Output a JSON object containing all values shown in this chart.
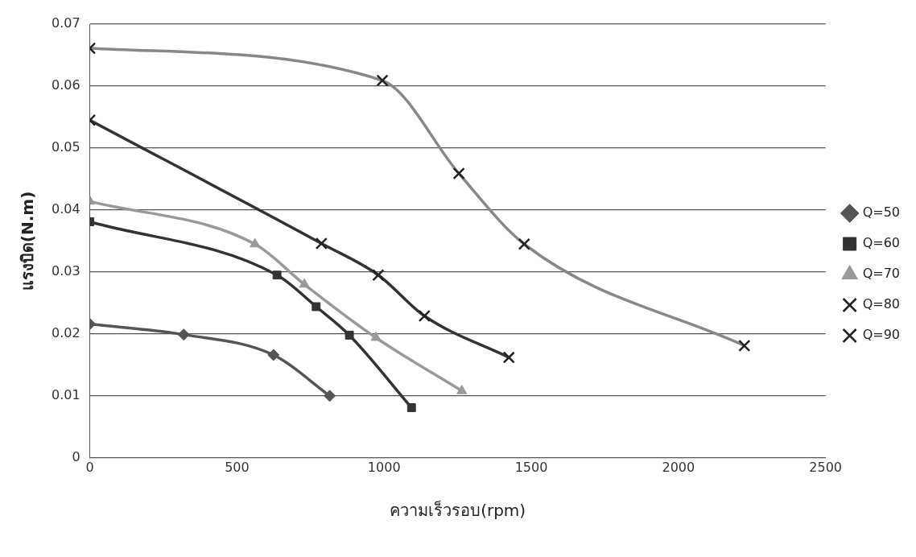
{
  "chart_data": {
    "type": "line",
    "xlabel": "ความเร็วรอบ(rpm)",
    "ylabel": "แรงบิด(N.m)",
    "xlim": [
      0,
      2500
    ],
    "xticks": [
      0,
      500,
      1000,
      1500,
      2000,
      2500
    ],
    "ylim": [
      0,
      0.07
    ],
    "yticks": [
      0,
      0.01,
      0.02,
      0.03,
      0.04,
      0.05,
      0.06,
      0.07
    ],
    "grid": "y",
    "legend": "right",
    "series": [
      {
        "name": "Q=50",
        "color": "#555555",
        "marker": "diamond",
        "x": [
          0,
          319,
          624,
          815
        ],
        "values": [
          0.0216,
          0.0199,
          0.0166,
          0.01
        ]
      },
      {
        "name": "Q=60",
        "color": "#333333",
        "marker": "square",
        "x": [
          0,
          636,
          769,
          882,
          1093
        ],
        "values": [
          0.0381,
          0.0295,
          0.0244,
          0.0198,
          0.0081
        ]
      },
      {
        "name": "Q=70",
        "color": "#999999",
        "marker": "triangle",
        "x": [
          0,
          561,
          729,
          972,
          1264
        ],
        "values": [
          0.0414,
          0.0345,
          0.028,
          0.0194,
          0.0108
        ]
      },
      {
        "name": "Q=80",
        "color": "#333333",
        "marker": "cross",
        "x": [
          0,
          787,
          980,
          1137,
          1424
        ],
        "values": [
          0.0545,
          0.0346,
          0.0295,
          0.0229,
          0.0162
        ]
      },
      {
        "name": "Q=90",
        "color": "#888888",
        "marker": "cross",
        "x": [
          0,
          994,
          1254,
          1476,
          2224
        ],
        "values": [
          0.0661,
          0.0609,
          0.0459,
          0.0345,
          0.0181
        ]
      }
    ]
  }
}
